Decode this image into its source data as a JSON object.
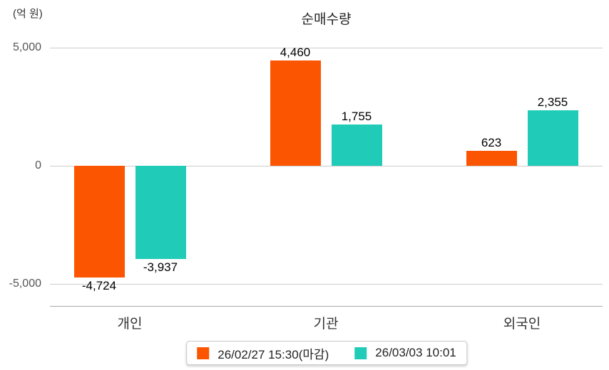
{
  "chart_data": {
    "type": "bar",
    "title": "순매수량",
    "unit_label": "(억 원)",
    "categories": [
      "개인",
      "기관",
      "외국인"
    ],
    "series": [
      {
        "name": "26/02/27 15:30(마감)",
        "color": "#FC5502",
        "values": [
          -4724,
          4460,
          623
        ],
        "labels": [
          "-4,724",
          "4,460",
          "623"
        ]
      },
      {
        "name": "26/03/03 10:01",
        "color": "#20CBB7",
        "values": [
          -3937,
          1755,
          2355
        ],
        "labels": [
          "-3,937",
          "1,755",
          "2,355"
        ]
      }
    ],
    "y_ticks": [
      {
        "value": 5000,
        "label": "5,000"
      },
      {
        "value": 0,
        "label": "0"
      },
      {
        "value": -5000,
        "label": "-5,000"
      }
    ],
    "ylim": [
      -5000,
      5000
    ],
    "grid": true,
    "legend_position": "bottom"
  },
  "colors": {
    "series_1": "#FC5502",
    "series_2": "#20CBB7",
    "gridline": "#CCCCCC",
    "axis_line": "#AAAAAA",
    "tick_text": "#555555",
    "category_text": "#333333",
    "title_text": "#222222",
    "value_text": "#000000",
    "legend_border": "#CCCCCC",
    "background": "#FFFFFF"
  }
}
